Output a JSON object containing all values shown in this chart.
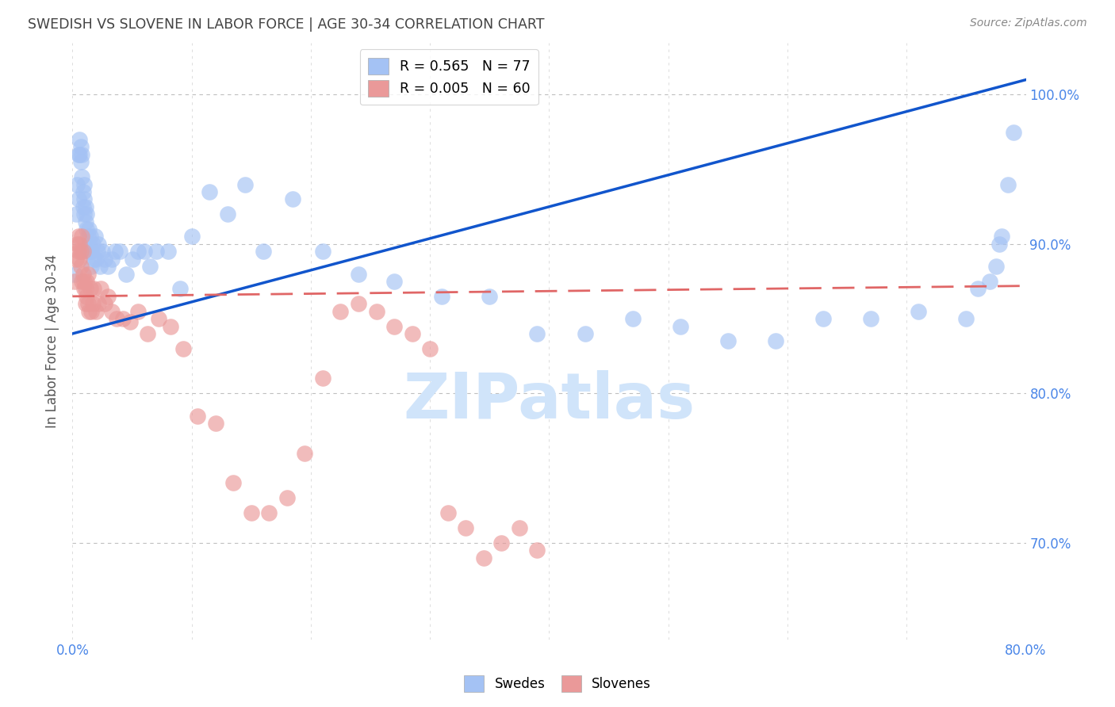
{
  "title": "SWEDISH VS SLOVENE IN LABOR FORCE | AGE 30-34 CORRELATION CHART",
  "source": "Source: ZipAtlas.com",
  "ylabel_left": "In Labor Force | Age 30-34",
  "x_tick_labels": [
    "0.0%",
    "",
    "",
    "",
    "",
    "",
    "",
    "",
    "80.0%"
  ],
  "y_tick_labels_right": [
    "70.0%",
    "80.0%",
    "90.0%",
    "100.0%"
  ],
  "y_tick_vals": [
    0.7,
    0.8,
    0.9,
    1.0
  ],
  "x_tick_vals": [
    0.0,
    0.1,
    0.2,
    0.3,
    0.4,
    0.5,
    0.6,
    0.7,
    0.8
  ],
  "xlim": [
    0.0,
    0.8
  ],
  "ylim": [
    0.635,
    1.035
  ],
  "legend_blue_label": "R = 0.565   N = 77",
  "legend_pink_label": "R = 0.005   N = 60",
  "legend_swedes": "Swedes",
  "legend_slovenes": "Slovenes",
  "blue_color": "#a4c2f4",
  "pink_color": "#ea9999",
  "blue_line_color": "#1155cc",
  "pink_line_color": "#e06666",
  "grid_color": "#b0b0b0",
  "title_color": "#434343",
  "axis_color": "#4a86e8",
  "watermark_color": "#d0e4fa",
  "background_color": "#ffffff",
  "blue_dots_x": [
    0.002,
    0.003,
    0.004,
    0.005,
    0.005,
    0.006,
    0.006,
    0.007,
    0.007,
    0.008,
    0.008,
    0.009,
    0.009,
    0.01,
    0.01,
    0.01,
    0.011,
    0.011,
    0.012,
    0.012,
    0.013,
    0.013,
    0.014,
    0.014,
    0.015,
    0.015,
    0.016,
    0.016,
    0.017,
    0.018,
    0.019,
    0.02,
    0.021,
    0.022,
    0.023,
    0.025,
    0.027,
    0.03,
    0.033,
    0.036,
    0.04,
    0.045,
    0.05,
    0.055,
    0.06,
    0.065,
    0.07,
    0.08,
    0.09,
    0.1,
    0.115,
    0.13,
    0.145,
    0.16,
    0.185,
    0.21,
    0.24,
    0.27,
    0.31,
    0.35,
    0.39,
    0.43,
    0.47,
    0.51,
    0.55,
    0.59,
    0.63,
    0.67,
    0.71,
    0.75,
    0.76,
    0.77,
    0.775,
    0.778,
    0.78,
    0.785,
    0.79
  ],
  "blue_dots_y": [
    0.88,
    0.92,
    0.94,
    0.93,
    0.96,
    0.96,
    0.97,
    0.965,
    0.955,
    0.945,
    0.96,
    0.935,
    0.925,
    0.94,
    0.93,
    0.92,
    0.925,
    0.915,
    0.92,
    0.91,
    0.905,
    0.895,
    0.91,
    0.9,
    0.905,
    0.895,
    0.895,
    0.885,
    0.9,
    0.89,
    0.905,
    0.89,
    0.895,
    0.9,
    0.885,
    0.895,
    0.89,
    0.885,
    0.89,
    0.895,
    0.895,
    0.88,
    0.89,
    0.895,
    0.895,
    0.885,
    0.895,
    0.895,
    0.87,
    0.905,
    0.935,
    0.92,
    0.94,
    0.895,
    0.93,
    0.895,
    0.88,
    0.875,
    0.865,
    0.865,
    0.84,
    0.84,
    0.85,
    0.845,
    0.835,
    0.835,
    0.85,
    0.85,
    0.855,
    0.85,
    0.87,
    0.875,
    0.885,
    0.9,
    0.905,
    0.94,
    0.975
  ],
  "pink_dots_x": [
    0.002,
    0.003,
    0.004,
    0.005,
    0.005,
    0.006,
    0.006,
    0.007,
    0.007,
    0.008,
    0.008,
    0.009,
    0.009,
    0.01,
    0.01,
    0.011,
    0.011,
    0.012,
    0.012,
    0.013,
    0.013,
    0.014,
    0.015,
    0.016,
    0.017,
    0.018,
    0.02,
    0.022,
    0.024,
    0.027,
    0.03,
    0.033,
    0.037,
    0.042,
    0.048,
    0.055,
    0.063,
    0.072,
    0.082,
    0.093,
    0.105,
    0.12,
    0.135,
    0.15,
    0.165,
    0.18,
    0.195,
    0.21,
    0.225,
    0.24,
    0.255,
    0.27,
    0.285,
    0.3,
    0.315,
    0.33,
    0.345,
    0.36,
    0.375,
    0.39
  ],
  "pink_dots_y": [
    0.875,
    0.89,
    0.9,
    0.895,
    0.905,
    0.9,
    0.89,
    0.895,
    0.885,
    0.905,
    0.875,
    0.895,
    0.88,
    0.875,
    0.87,
    0.87,
    0.86,
    0.865,
    0.875,
    0.88,
    0.86,
    0.855,
    0.87,
    0.855,
    0.86,
    0.87,
    0.855,
    0.86,
    0.87,
    0.86,
    0.865,
    0.855,
    0.85,
    0.85,
    0.848,
    0.855,
    0.84,
    0.85,
    0.845,
    0.83,
    0.785,
    0.78,
    0.74,
    0.72,
    0.72,
    0.73,
    0.76,
    0.81,
    0.855,
    0.86,
    0.855,
    0.845,
    0.84,
    0.83,
    0.72,
    0.71,
    0.69,
    0.7,
    0.71,
    0.695
  ],
  "blue_trendline_x": [
    0.0,
    0.8
  ],
  "blue_trendline_y": [
    0.84,
    1.01
  ],
  "pink_trendline_x": [
    0.0,
    0.8
  ],
  "pink_trendline_y": [
    0.865,
    0.872
  ]
}
